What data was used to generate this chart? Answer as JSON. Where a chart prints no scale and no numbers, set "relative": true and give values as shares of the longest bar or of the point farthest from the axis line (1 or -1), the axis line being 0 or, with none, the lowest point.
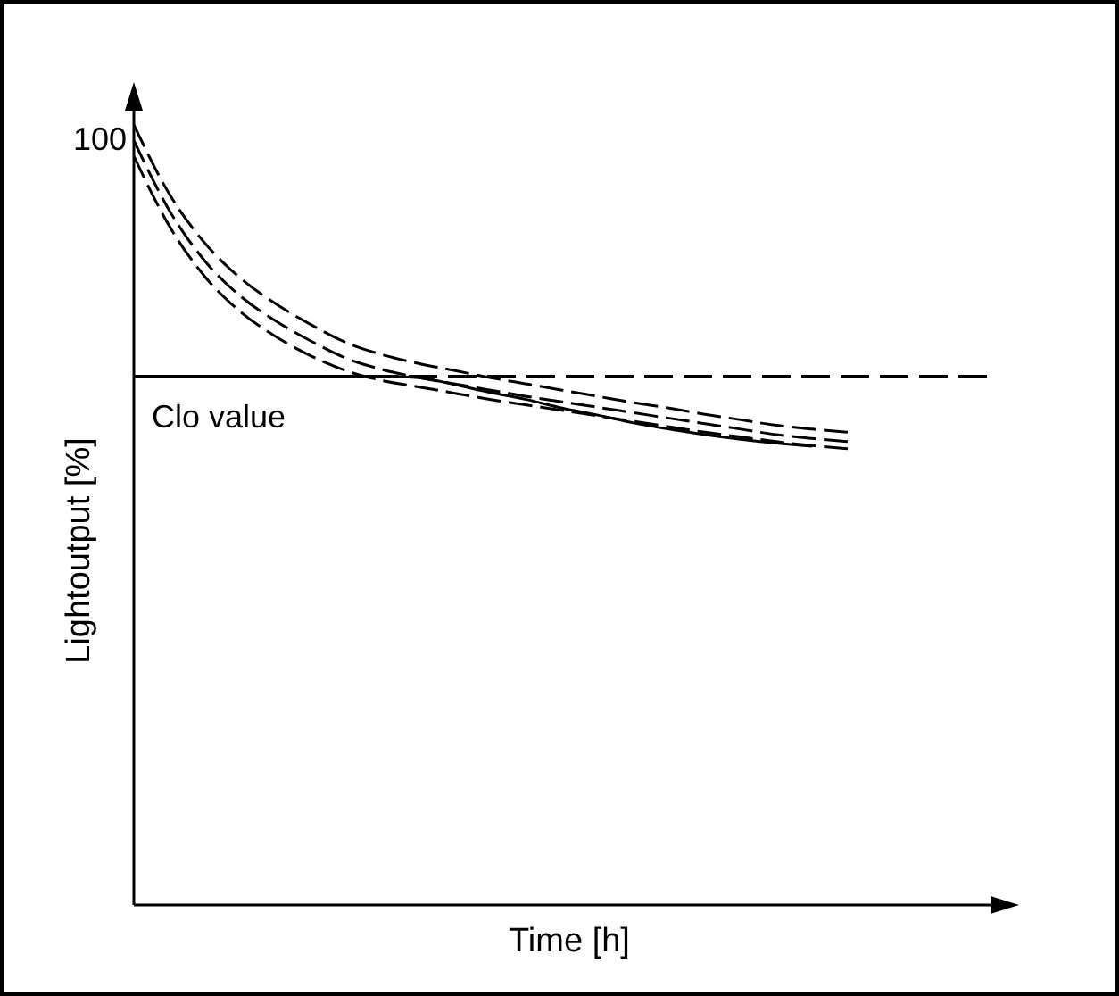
{
  "chart_data": {
    "type": "line",
    "relative": true,
    "xlabel": "Time [h]",
    "ylabel": "Lightoutput [%]",
    "categories": [
      null,
      null,
      null,
      null,
      null,
      null,
      null,
      null,
      null,
      null,
      null,
      null,
      null,
      null,
      null,
      null,
      null,
      null,
      null,
      null,
      null
    ],
    "series": [
      {
        "color": "#000000",
        "line_style": "dashed",
        "values": [
          1.0,
          0.911,
          0.848,
          0.803,
          0.77,
          0.743,
          0.72,
          0.705,
          0.694,
          0.685,
          0.676,
          0.668,
          0.66,
          0.652,
          0.644,
          0.637,
          0.629,
          0.622,
          0.615,
          0.61,
          0.606
        ]
      },
      {
        "color": "#000000",
        "line_style": "dashed",
        "values": [
          0.98,
          0.89,
          0.825,
          0.78,
          0.748,
          0.722,
          0.7,
          0.686,
          0.676,
          0.668,
          0.66,
          0.652,
          0.645,
          0.638,
          0.631,
          0.624,
          0.617,
          0.61,
          0.603,
          0.598,
          0.594
        ]
      },
      {
        "color": "#000000",
        "line_style": "dashed",
        "values": [
          0.96,
          0.87,
          0.805,
          0.76,
          0.728,
          0.703,
          0.684,
          0.672,
          0.664,
          0.656,
          0.648,
          0.641,
          0.634,
          0.627,
          0.62,
          0.613,
          0.606,
          0.6,
          0.594,
          0.589,
          0.585
        ]
      },
      {
        "color": "#000000",
        "line_style": "solid",
        "values": [
          0.678,
          0.678,
          0.678,
          0.678,
          0.678,
          0.678,
          0.678,
          0.678,
          0.676,
          0.667,
          0.657,
          0.648,
          0.637,
          0.628,
          0.618,
          0.61,
          0.603,
          0.597,
          0.592,
          0.588,
          null
        ]
      }
    ],
    "ref_lines": [
      {
        "axis": "y",
        "value": 0.678,
        "label": "Clo value",
        "line_style": "dashed"
      }
    ],
    "annotations": [
      "100"
    ]
  }
}
